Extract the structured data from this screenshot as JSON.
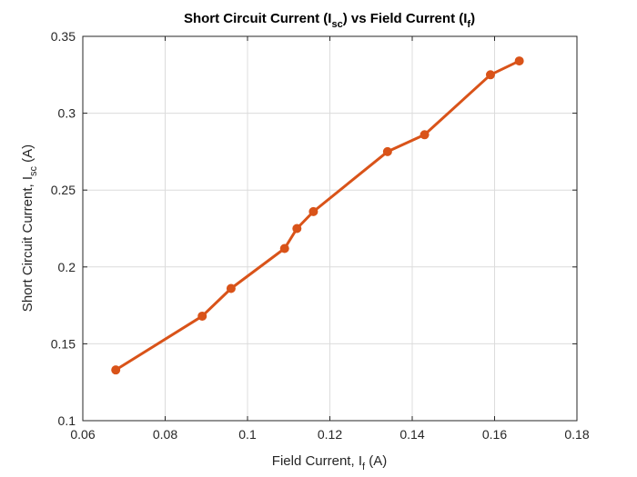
{
  "chart_data": {
    "type": "line",
    "title": {
      "main": "Short Circuit Current (I",
      "sub1": "sc",
      "mid": ") vs Field Current (I",
      "sub2": "f",
      "end": ")"
    },
    "xlabel": {
      "main": "Field Current, I",
      "sub": "f",
      "end": " (A)"
    },
    "ylabel": {
      "main": "Short Circuit Current, I",
      "sub": "sc",
      "end": " (A)"
    },
    "xlim": [
      0.06,
      0.18
    ],
    "ylim": [
      0.1,
      0.35
    ],
    "xticks": [
      0.06,
      0.08,
      0.1,
      0.12,
      0.14,
      0.16,
      0.18
    ],
    "xtick_labels": [
      "0.06",
      "0.08",
      "0.1",
      "0.12",
      "0.14",
      "0.16",
      "0.18"
    ],
    "yticks": [
      0.1,
      0.15,
      0.2,
      0.25,
      0.3,
      0.35
    ],
    "ytick_labels": [
      "0.1",
      "0.15",
      "0.2",
      "0.25",
      "0.3",
      "0.35"
    ],
    "grid": true,
    "series": [
      {
        "color": "#D95319",
        "marker": "circle",
        "x": [
          0.068,
          0.089,
          0.096,
          0.109,
          0.112,
          0.116,
          0.134,
          0.143,
          0.159,
          0.166
        ],
        "y": [
          0.133,
          0.168,
          0.186,
          0.212,
          0.225,
          0.236,
          0.275,
          0.286,
          0.325,
          0.334
        ]
      }
    ]
  }
}
